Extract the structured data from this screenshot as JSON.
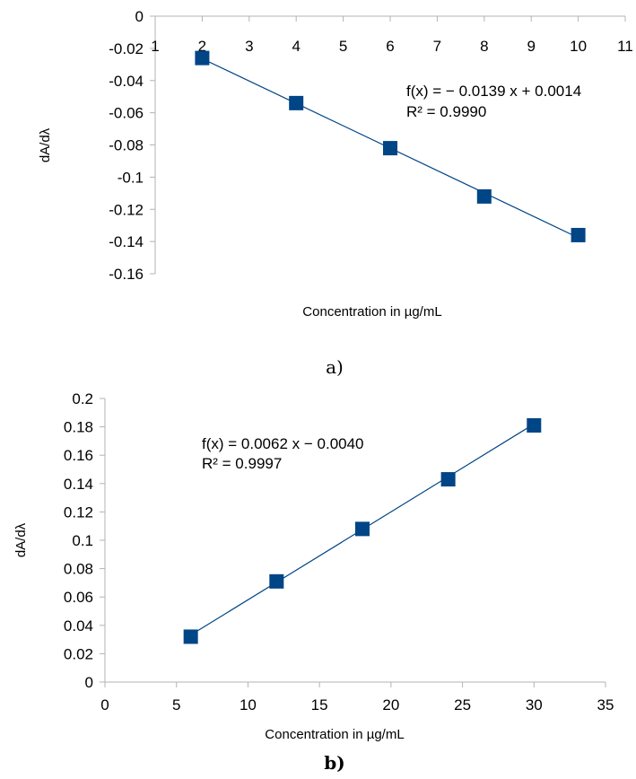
{
  "chart_data": [
    {
      "type": "scatter",
      "panel_label": "a)",
      "xlabel": "Concentration in µg/mL",
      "ylabel": "dA/dλ",
      "xlim": [
        1,
        11
      ],
      "ylim": [
        -0.16,
        0
      ],
      "x_ticks": [
        "1",
        "2",
        "3",
        "4",
        "5",
        "6",
        "7",
        "8",
        "9",
        "10",
        "11"
      ],
      "y_ticks": [
        "0",
        "-0.02",
        "-0.04",
        "-0.06",
        "-0.08",
        "-0.1",
        "-0.12",
        "-0.14",
        "-0.16"
      ],
      "x_axis_position": "top",
      "series": [
        {
          "x": [
            2,
            4,
            6,
            8,
            10
          ],
          "y": [
            -0.026,
            -0.054,
            -0.082,
            -0.112,
            -0.136
          ]
        }
      ],
      "trendline": {
        "slope": -0.0139,
        "intercept": 0.0014
      },
      "equation": "f(x) = − 0.0139 x + 0.0014",
      "r_squared": "R² = 0.9990",
      "marker_color": "#004586",
      "line_color": "#004586"
    },
    {
      "type": "scatter",
      "panel_label": "b)",
      "xlabel": "Concentration in µg/mL",
      "ylabel": "dA/dλ",
      "xlim": [
        0,
        35
      ],
      "ylim": [
        0,
        0.2
      ],
      "x_ticks": [
        "0",
        "5",
        "10",
        "15",
        "20",
        "25",
        "30",
        "35"
      ],
      "y_ticks": [
        "0",
        "0.02",
        "0.04",
        "0.06",
        "0.08",
        "0.1",
        "0.12",
        "0.14",
        "0.16",
        "0.18",
        "0.2"
      ],
      "x_axis_position": "bottom",
      "series": [
        {
          "x": [
            6,
            12,
            18,
            24,
            30
          ],
          "y": [
            0.032,
            0.071,
            0.108,
            0.143,
            0.181
          ]
        }
      ],
      "trendline": {
        "slope": 0.0062,
        "intercept": -0.004
      },
      "equation": "f(x) = 0.0062 x − 0.0040",
      "r_squared": "R² = 0.9997",
      "marker_color": "#004586",
      "line_color": "#004586"
    }
  ]
}
